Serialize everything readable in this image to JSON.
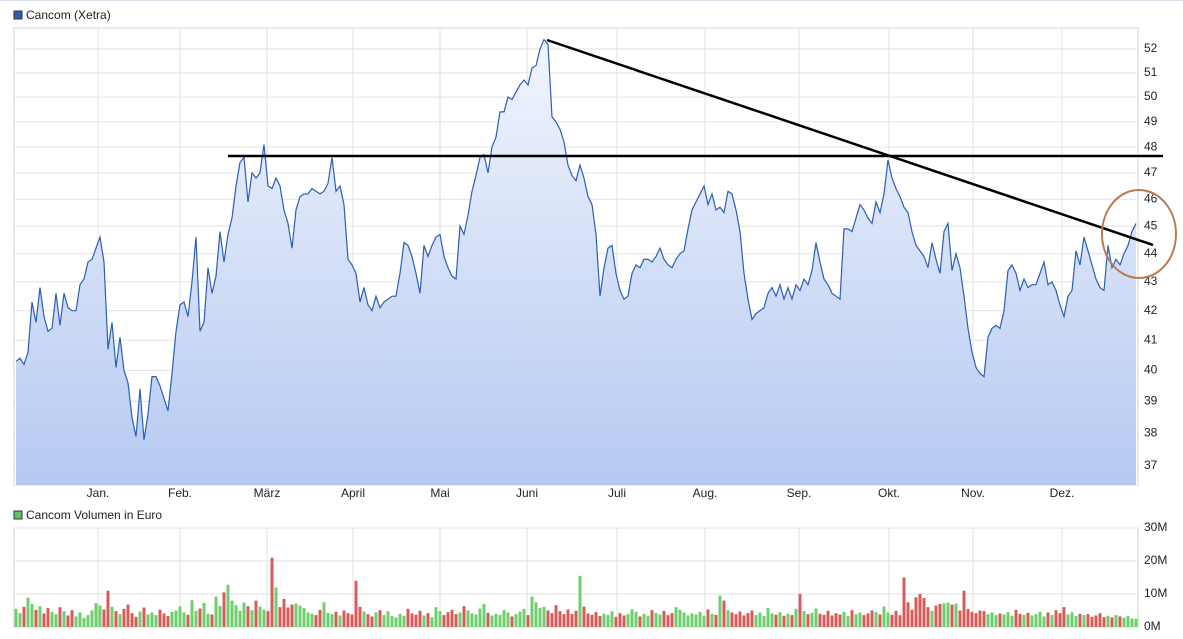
{
  "chart_data": [
    {
      "type": "area",
      "title": "Cancom (Xetra)",
      "log": true,
      "grid": true,
      "xlim": [
        -0.5,
        280.5
      ],
      "xticks": [
        {
          "value": 20.5,
          "label": "Jan."
        },
        {
          "value": 41,
          "label": "Feb."
        },
        {
          "value": 62.75,
          "label": "März"
        },
        {
          "value": 84.25,
          "label": "April"
        },
        {
          "value": 106,
          "label": "Mai"
        },
        {
          "value": 127.75,
          "label": "Juni"
        },
        {
          "value": 150.25,
          "label": "Juli"
        },
        {
          "value": 172.25,
          "label": "Aug."
        },
        {
          "value": 195.75,
          "label": "Sep."
        },
        {
          "value": 218.25,
          "label": "Okt."
        },
        {
          "value": 239.25,
          "label": "Nov."
        },
        {
          "value": 261.5,
          "label": "Dez."
        }
      ],
      "ylim": [
        36.43,
        52.9
      ],
      "yticks": [
        37,
        38,
        39,
        40,
        41,
        42,
        43,
        44,
        45,
        46,
        47,
        48,
        49,
        50,
        51,
        52
      ],
      "series": [
        {
          "name": "Cancom (Xetra)",
          "color": "#2b5fb4",
          "values": [
            40.3,
            40.4,
            40.2,
            40.6,
            42.3,
            41.6,
            42.8,
            41.8,
            41.3,
            41.4,
            42.6,
            41.5,
            42.6,
            42.1,
            42.0,
            42.0,
            42.9,
            43.1,
            43.7,
            43.8,
            44.2,
            44.6,
            43.7,
            40.7,
            41.6,
            40.1,
            41.1,
            40.0,
            39.6,
            38.5,
            37.9,
            39.4,
            37.8,
            38.6,
            39.8,
            39.8,
            39.5,
            39.1,
            38.7,
            39.9,
            41.3,
            42.2,
            42.3,
            41.8,
            43.0,
            44.6,
            41.3,
            41.6,
            43.5,
            42.6,
            43.2,
            44.8,
            43.7,
            44.7,
            45.3,
            46.5,
            47.4,
            47.6,
            45.9,
            47.0,
            46.8,
            47.0,
            48.1,
            46.5,
            46.4,
            46.8,
            46.5,
            45.6,
            45.1,
            44.2,
            45.6,
            46.1,
            46.2,
            46.2,
            46.4,
            46.3,
            46.2,
            46.3,
            46.6,
            47.6,
            46.3,
            46.5,
            45.8,
            43.8,
            43.6,
            43.3,
            42.3,
            42.8,
            42.2,
            42.0,
            42.5,
            42.1,
            42.3,
            42.4,
            42.5,
            42.5,
            43.3,
            44.4,
            44.3,
            43.9,
            43.3,
            42.6,
            44.3,
            43.9,
            44.3,
            44.6,
            44.7,
            43.9,
            43.5,
            43.2,
            43.1,
            45.0,
            44.7,
            45.4,
            46.3,
            46.9,
            47.6,
            47.7,
            47.0,
            48.0,
            48.4,
            49.4,
            49.4,
            50.0,
            49.9,
            50.2,
            50.5,
            50.7,
            50.5,
            51.2,
            51.3,
            52.0,
            52.4,
            52.2,
            49.2,
            49.0,
            48.7,
            48.2,
            47.3,
            46.9,
            46.7,
            47.3,
            46.8,
            46.1,
            45.8,
            44.7,
            42.5,
            43.5,
            44.2,
            44.3,
            43.3,
            42.7,
            42.4,
            42.5,
            43.3,
            43.6,
            43.5,
            43.8,
            43.8,
            43.7,
            43.9,
            44.2,
            43.8,
            43.6,
            43.5,
            43.8,
            44.0,
            44.1,
            44.9,
            45.6,
            45.9,
            46.2,
            46.5,
            45.8,
            46.2,
            45.6,
            45.7,
            45.5,
            46.3,
            46.2,
            45.6,
            44.8,
            43.3,
            42.4,
            41.7,
            41.9,
            42.0,
            42.1,
            42.6,
            42.8,
            42.5,
            42.9,
            42.4,
            42.8,
            42.4,
            42.9,
            42.7,
            43.1,
            42.9,
            43.4,
            44.4,
            43.7,
            43.1,
            42.9,
            42.6,
            42.5,
            42.4,
            44.9,
            44.9,
            44.8,
            45.3,
            45.8,
            45.6,
            45.3,
            45.1,
            45.9,
            45.5,
            46.2,
            47.5,
            46.8,
            46.4,
            46.1,
            45.7,
            45.5,
            44.8,
            44.3,
            44.1,
            43.9,
            43.5,
            44.4,
            43.8,
            43.3,
            44.8,
            45.1,
            43.4,
            44.0,
            43.5,
            42.5,
            41.4,
            40.6,
            40.1,
            39.9,
            39.8,
            41.1,
            41.4,
            41.5,
            41.4,
            42.0,
            43.4,
            43.6,
            43.3,
            42.7,
            43.1,
            42.8,
            42.9,
            42.9,
            43.3,
            43.7,
            42.9,
            43.0,
            42.7,
            42.2,
            41.8,
            42.5,
            42.7,
            44.1,
            43.6,
            44.6,
            44.1,
            43.6,
            43.1,
            42.8,
            42.7,
            44.3,
            43.5,
            43.8,
            43.6,
            44.0,
            44.3,
            44.8,
            45.1
          ]
        }
      ]
    },
    {
      "type": "bar",
      "title": "Cancom Volumen in Euro",
      "grid": true,
      "xlim": [
        -0.5,
        280.5
      ],
      "ylim": [
        0,
        30
      ],
      "yticks": [
        {
          "value": 0,
          "label": "0M"
        },
        {
          "value": 10,
          "label": "10M"
        },
        {
          "value": 20,
          "label": "20M"
        },
        {
          "value": 30,
          "label": "30M"
        }
      ],
      "up_color": "#6fcf6f",
      "down_color": "#d65c5c",
      "series": [
        {
          "name": "Cancom Volumen in Euro",
          "color": "#5cc45c",
          "values": [
            5.5,
            4.2,
            6.1,
            8.9,
            7.0,
            5.2,
            6.3,
            4.1,
            5.8,
            4.6,
            3.9,
            6.0,
            4.8,
            3.5,
            5.1,
            3.2,
            4.4,
            2.8,
            3.6,
            5.0,
            7.2,
            6.5,
            5.3,
            11.0,
            6.1,
            4.8,
            3.9,
            5.5,
            6.8,
            4.2,
            3.1,
            4.7,
            5.9,
            3.8,
            4.4,
            3.6,
            5.2,
            4.1,
            3.3,
            4.6,
            5.0,
            6.2,
            4.4,
            3.7,
            8.1,
            4.9,
            5.6,
            7.3,
            4.0,
            3.8,
            9.2,
            6.4,
            10.5,
            12.8,
            8.0,
            6.6,
            4.9,
            7.4,
            6.3,
            5.1,
            8.0,
            6.2,
            5.3,
            4.8,
            21.0,
            12.0,
            6.0,
            8.5,
            5.9,
            6.8,
            7.1,
            6.5,
            5.8,
            4.4,
            4.0,
            3.6,
            5.2,
            7.5,
            4.3,
            3.9,
            4.6,
            3.5,
            5.0,
            4.2,
            3.8,
            14.0,
            6.1,
            4.7,
            3.9,
            3.2,
            4.4,
            5.1,
            3.6,
            4.8,
            3.3,
            2.9,
            4.0,
            3.4,
            5.5,
            4.1,
            3.7,
            4.9,
            3.5,
            4.2,
            3.0,
            6.0,
            4.8,
            3.6,
            4.5,
            5.2,
            3.9,
            4.4,
            6.3,
            5.0,
            4.1,
            3.8,
            5.6,
            7.0,
            4.3,
            3.5,
            4.0,
            3.6,
            5.1,
            4.4,
            3.2,
            3.9,
            4.7,
            5.5,
            3.6,
            9.2,
            7.5,
            5.8,
            6.1,
            5.0,
            4.2,
            6.6,
            4.8,
            3.9,
            5.3,
            4.0,
            4.9,
            15.5,
            6.2,
            4.1,
            3.7,
            4.5,
            3.3,
            4.0,
            3.6,
            4.8,
            3.1,
            4.2,
            3.5,
            3.9,
            5.4,
            4.6,
            3.2,
            4.0,
            3.4,
            5.1,
            4.3,
            3.8,
            4.9,
            3.6,
            4.2,
            6.0,
            5.2,
            4.4,
            3.5,
            4.1,
            3.8,
            4.6,
            3.4,
            5.3,
            4.0,
            3.7,
            9.5,
            8.0,
            5.1,
            4.4,
            3.9,
            4.7,
            3.5,
            4.2,
            5.0,
            3.6,
            4.4,
            3.3,
            5.8,
            4.1,
            3.7,
            4.5,
            3.4,
            4.0,
            3.6,
            5.5,
            10.0,
            4.8,
            3.9,
            4.3,
            5.6,
            4.0,
            3.7,
            4.9,
            3.5,
            4.2,
            3.8,
            4.6,
            3.3,
            5.1,
            3.9,
            4.4,
            3.6,
            4.1,
            5.0,
            4.5,
            3.8,
            6.2,
            4.4,
            3.7,
            4.9,
            3.6,
            15.0,
            7.5,
            5.2,
            9.0,
            10.0,
            8.8,
            6.0,
            4.9,
            6.5,
            7.0,
            7.2,
            7.4,
            6.8,
            7.1,
            5.0,
            11.0,
            5.5,
            4.6,
            4.2,
            5.0,
            4.8,
            3.9,
            4.4,
            3.6,
            4.1,
            3.8,
            4.5,
            3.4,
            5.2,
            4.0,
            3.7,
            4.3,
            3.5,
            3.9,
            4.6,
            3.2,
            4.4,
            3.6,
            5.1,
            4.2,
            6.0,
            3.8,
            4.5,
            3.3,
            4.0,
            3.6,
            3.9,
            3.1,
            3.5,
            4.2,
            3.0,
            3.4,
            2.9,
            3.6,
            3.2,
            2.8,
            3.3,
            2.6,
            2.5
          ]
        }
      ]
    }
  ]
}
